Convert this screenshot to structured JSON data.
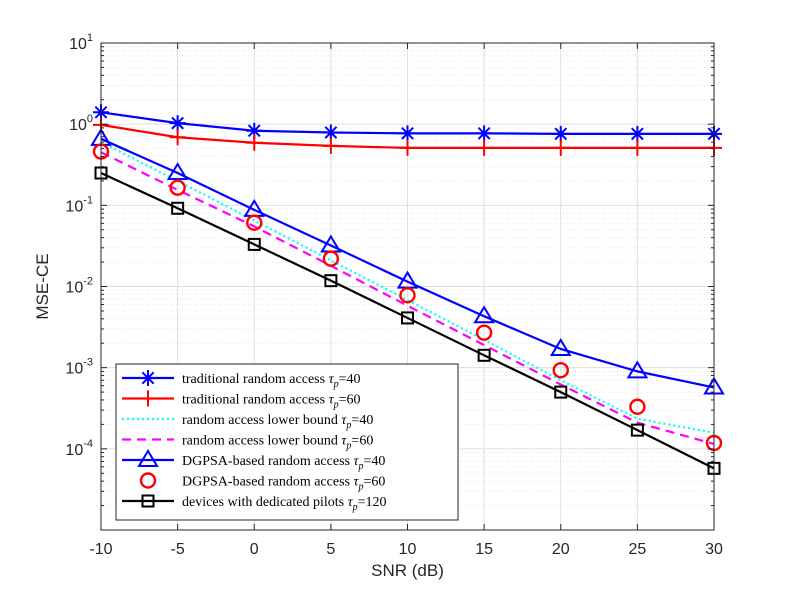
{
  "chart_data": {
    "type": "line",
    "xlabel": "SNR (dB)",
    "ylabel": "MSE-CE",
    "yscale": "log",
    "xlim": [
      -10,
      30
    ],
    "ylim": [
      1e-05,
      10
    ],
    "grid": true,
    "x": [
      -10,
      -5,
      0,
      5,
      10,
      15,
      20,
      25,
      30
    ],
    "x_ticks": [
      "-10",
      "-5",
      "0",
      "5",
      "10",
      "15",
      "20",
      "25",
      "30"
    ],
    "y_ticks": [
      {
        "base": "10",
        "exp": "-4",
        "value": 0.0001
      },
      {
        "base": "10",
        "exp": "-3",
        "value": 0.001
      },
      {
        "base": "10",
        "exp": "-2",
        "value": 0.01
      },
      {
        "base": "10",
        "exp": "-1",
        "value": 0.1
      },
      {
        "base": "10",
        "exp": "0",
        "value": 1
      },
      {
        "base": "10",
        "exp": "1",
        "value": 10
      }
    ],
    "legend_position": "bottom-left",
    "series": [
      {
        "label": "traditional random access ",
        "tau": "p",
        "eq": "=40",
        "color": "#0000ff",
        "dash": "",
        "marker": "star",
        "line": true,
        "values": [
          1.4,
          1.03,
          0.83,
          0.79,
          0.77,
          0.77,
          0.76,
          0.76,
          0.76
        ]
      },
      {
        "label": "traditional random access ",
        "tau": "p",
        "eq": "=60",
        "color": "#ff0000",
        "dash": "",
        "marker": "plus",
        "line": true,
        "values": [
          0.98,
          0.69,
          0.59,
          0.54,
          0.51,
          0.51,
          0.51,
          0.51,
          0.51
        ]
      },
      {
        "label": "random access lower bound ",
        "tau": "p",
        "eq": "=40",
        "color": "#00ffff",
        "dash": "2,3",
        "marker": "none",
        "line": true,
        "values": [
          0.6,
          0.2,
          0.065,
          0.021,
          0.0068,
          0.0022,
          0.0007,
          0.000235,
          0.000158
        ]
      },
      {
        "label": "random access lower bound ",
        "tau": "p",
        "eq": "=60",
        "color": "#ff00ff",
        "dash": "9,6",
        "marker": "none",
        "line": true,
        "values": [
          0.45,
          0.155,
          0.055,
          0.018,
          0.0058,
          0.0019,
          0.00062,
          0.00021,
          0.000115
        ]
      },
      {
        "label": "DGPSA-based random access ",
        "tau": "p",
        "eq": "=40",
        "color": "#0000ff",
        "dash": "",
        "marker": "triangle",
        "line": true,
        "values": [
          0.66,
          0.25,
          0.088,
          0.032,
          0.0115,
          0.0043,
          0.0017,
          0.0009,
          0.00057
        ]
      },
      {
        "label": "DGPSA-based random access ",
        "tau": "p",
        "eq": "=60",
        "color": "#ff0000",
        "dash": "",
        "marker": "circle",
        "line": false,
        "values": [
          0.46,
          0.165,
          0.061,
          0.022,
          0.0078,
          0.0027,
          0.00093,
          0.00033,
          0.000118
        ]
      },
      {
        "label": "devices with dedicated pilots ",
        "tau": "p",
        "eq": "=120",
        "color": "#000000",
        "dash": "",
        "marker": "square",
        "line": true,
        "values": [
          0.25,
          0.092,
          0.033,
          0.0118,
          0.0041,
          0.00142,
          0.0005,
          0.00017,
          5.75e-05
        ]
      }
    ]
  }
}
